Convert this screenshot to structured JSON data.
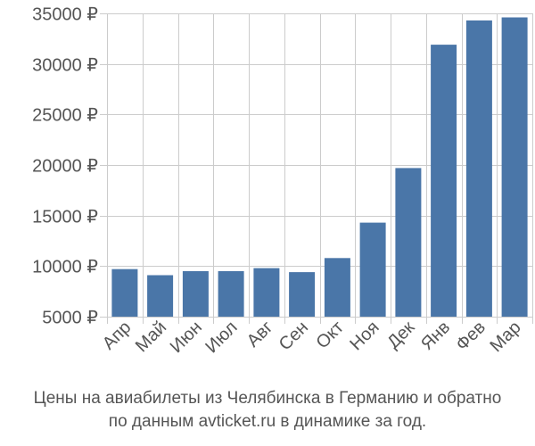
{
  "chart_data": {
    "type": "bar",
    "categories": [
      "Апр",
      "Май",
      "Июн",
      "Июл",
      "Авг",
      "Сен",
      "Окт",
      "Ноя",
      "Дек",
      "Янв",
      "Фев",
      "Мар"
    ],
    "values": [
      9700,
      9100,
      9500,
      9500,
      9800,
      9400,
      10800,
      14300,
      19700,
      31900,
      34300,
      34600
    ],
    "ylim": [
      5000,
      35000
    ],
    "yticks": [
      5000,
      10000,
      15000,
      20000,
      25000,
      30000,
      35000
    ],
    "ytick_labels": [
      "5000 ₽",
      "10000 ₽",
      "15000 ₽",
      "20000 ₽",
      "25000 ₽",
      "30000 ₽",
      "35000 ₽"
    ],
    "bar_color": "#4a76a8",
    "grid": true
  },
  "caption": {
    "line1": "Цены на авиабилеты из Челябинска в Германию и обратно",
    "line2": "по данным avticket.ru в динамике за год."
  }
}
